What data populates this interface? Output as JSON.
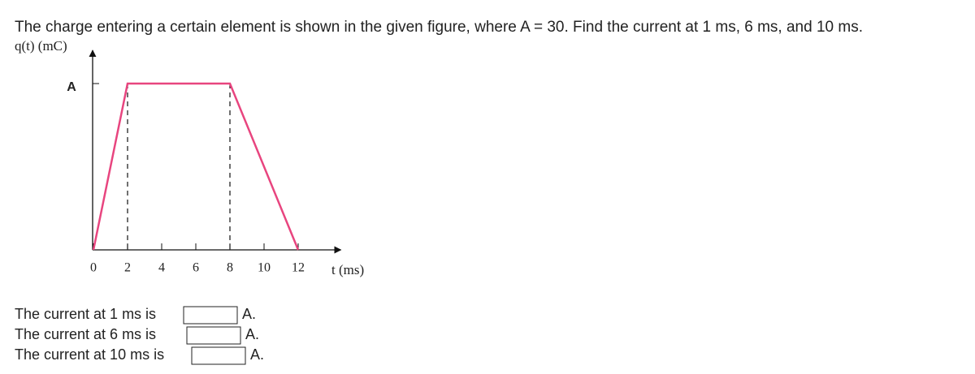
{
  "question": "The charge entering a certain element is shown in the given figure, where A = 30. Find the current at 1 ms, 6 ms, and 10 ms.",
  "figure": {
    "type": "line",
    "y_label": "q(t) (mC)",
    "x_label": "t (ms)",
    "x": [
      0,
      2,
      8,
      12
    ],
    "values": [
      0,
      30,
      30,
      0
    ],
    "color": "#e8457f",
    "xlim": [
      0,
      14.5
    ],
    "ylim": [
      0,
      36
    ],
    "xticks": [
      0,
      2,
      4,
      6,
      8,
      10,
      12
    ],
    "yticks": [
      {
        "value": 30,
        "label": "A"
      }
    ]
  },
  "answers": [
    {
      "label": "The current at 1 ms is",
      "unit": "A."
    },
    {
      "label": "The current at 6 ms is",
      "unit": "A."
    },
    {
      "label": "The current at 10 ms is",
      "unit": "A."
    }
  ]
}
